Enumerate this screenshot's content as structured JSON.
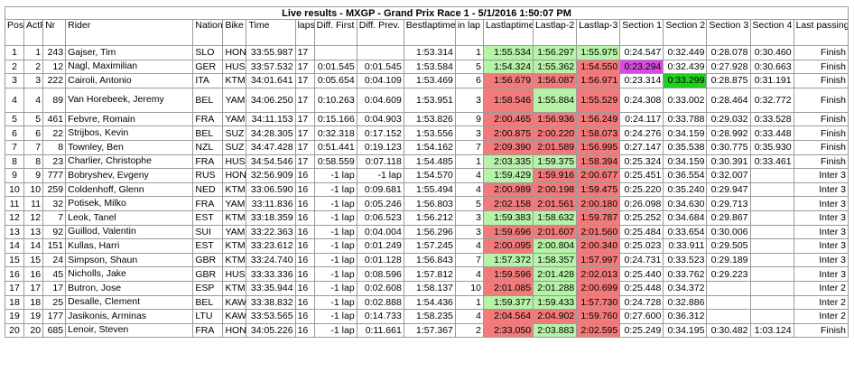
{
  "title": "Live results - MXGP - Grand Prix Race 1 - 5/1/2016 1:50:07 PM",
  "headers": [
    "Pos",
    "ActP",
    "Nr",
    "Rider",
    "Nation",
    "Bike",
    "Time",
    "laps",
    "Diff. First",
    "Diff. Prev.",
    "Bestlaptime",
    "in lap",
    "Lastlaptime",
    "Lastlap-2",
    "Lastlap-3",
    "Section 1",
    "Section 2",
    "Section 3",
    "Section 4",
    "Last passing"
  ],
  "rows": [
    {
      "pos": "1",
      "actp": "1",
      "nr": "243",
      "rider": "Gajser, Tim",
      "nation": "SLO",
      "bike": "HON",
      "time": "33:55.987",
      "laps": "17",
      "dfirst": "",
      "dprev": "",
      "best": "1:53.314",
      "inlap": "1",
      "last": "1:55.534",
      "l2": "1:56.297",
      "l3": "1:55.975",
      "s1": "0:24.547",
      "s2": "0:32.449",
      "s3": "0:28.078",
      "s4": "0:30.460",
      "passing": "Finish"
    },
    {
      "pos": "2",
      "actp": "2",
      "nr": "12",
      "rider": "Nagl, Maximilian",
      "nation": "GER",
      "bike": "HUS",
      "time": "33:57.532",
      "laps": "17",
      "dfirst": "0:01.545",
      "dprev": "0:01.545",
      "best": "1:53.584",
      "inlap": "5",
      "last": "1:54.324",
      "l2": "1:55.362",
      "l3": "1:54.550",
      "s1": "0:23.294",
      "s2": "0:32.439",
      "s3": "0:27.928",
      "s4": "0:30.663",
      "passing": "Finish"
    },
    {
      "pos": "3",
      "actp": "3",
      "nr": "222",
      "rider": "Cairoli, Antonio",
      "nation": "ITA",
      "bike": "KTM",
      "time": "34:01.641",
      "laps": "17",
      "dfirst": "0:05.654",
      "dprev": "0:04.109",
      "best": "1:53.469",
      "inlap": "6",
      "last": "1:56.679",
      "l2": "1:56.087",
      "l3": "1:56.971",
      "s1": "0:23.314",
      "s2": "0:33.299",
      "s3": "0:28.875",
      "s4": "0:31.191",
      "passing": "Finish"
    },
    {
      "pos": "4",
      "actp": "4",
      "nr": "89",
      "rider": "Van Horebeek, Jeremy",
      "nation": "BEL",
      "bike": "YAM",
      "time": "34:06.250",
      "laps": "17",
      "dfirst": "0:10.263",
      "dprev": "0:04.609",
      "best": "1:53.951",
      "inlap": "3",
      "last": "1:58.546",
      "l2": "1:55.884",
      "l3": "1:55.529",
      "s1": "0:24.308",
      "s2": "0:33.002",
      "s3": "0:28.464",
      "s4": "0:32.772",
      "passing": "Finish"
    },
    {
      "pos": "5",
      "actp": "5",
      "nr": "461",
      "rider": "Febvre, Romain",
      "nation": "FRA",
      "bike": "YAM",
      "time": "34:11.153",
      "laps": "17",
      "dfirst": "0:15.166",
      "dprev": "0:04.903",
      "best": "1:53.826",
      "inlap": "9",
      "last": "2:00.465",
      "l2": "1:56.936",
      "l3": "1:56.249",
      "s1": "0:24.117",
      "s2": "0:33.788",
      "s3": "0:29.032",
      "s4": "0:33.528",
      "passing": "Finish"
    },
    {
      "pos": "6",
      "actp": "6",
      "nr": "22",
      "rider": "Strijbos, Kevin",
      "nation": "BEL",
      "bike": "SUZ",
      "time": "34:28.305",
      "laps": "17",
      "dfirst": "0:32.318",
      "dprev": "0:17.152",
      "best": "1:53.556",
      "inlap": "3",
      "last": "2:00.875",
      "l2": "2:00.220",
      "l3": "1:58.073",
      "s1": "0:24.276",
      "s2": "0:34.159",
      "s3": "0:28.992",
      "s4": "0:33.448",
      "passing": "Finish"
    },
    {
      "pos": "7",
      "actp": "7",
      "nr": "8",
      "rider": "Townley, Ben",
      "nation": "NZL",
      "bike": "SUZ",
      "time": "34:47.428",
      "laps": "17",
      "dfirst": "0:51.441",
      "dprev": "0:19.123",
      "best": "1:54.162",
      "inlap": "7",
      "last": "2:09.390",
      "l2": "2:01.589",
      "l3": "1:56.995",
      "s1": "0:27.147",
      "s2": "0:35.538",
      "s3": "0:30.775",
      "s4": "0:35.930",
      "passing": "Finish"
    },
    {
      "pos": "8",
      "actp": "8",
      "nr": "23",
      "rider": "Charlier, Christophe",
      "nation": "FRA",
      "bike": "HUS",
      "time": "34:54.546",
      "laps": "17",
      "dfirst": "0:58.559",
      "dprev": "0:07.118",
      "best": "1:54.485",
      "inlap": "1",
      "last": "2:03.335",
      "l2": "1:59.375",
      "l3": "1:58.394",
      "s1": "0:25.324",
      "s2": "0:34.159",
      "s3": "0:30.391",
      "s4": "0:33.461",
      "passing": "Finish"
    },
    {
      "pos": "9",
      "actp": "9",
      "nr": "777",
      "rider": "Bobryshev, Evgeny",
      "nation": "RUS",
      "bike": "HON",
      "time": "32:56.909",
      "laps": "16",
      "dfirst": "-1 lap",
      "dprev": "-1 lap",
      "best": "1:54.570",
      "inlap": "4",
      "last": "1:59.429",
      "l2": "1:59.916",
      "l3": "2:00.677",
      "s1": "0:25.451",
      "s2": "0:36.554",
      "s3": "0:32.007",
      "s4": "",
      "passing": "Inter 3"
    },
    {
      "pos": "10",
      "actp": "10",
      "nr": "259",
      "rider": "Coldenhoff, Glenn",
      "nation": "NED",
      "bike": "KTM",
      "time": "33:06.590",
      "laps": "16",
      "dfirst": "-1 lap",
      "dprev": "0:09.681",
      "best": "1:55.494",
      "inlap": "4",
      "last": "2:00.989",
      "l2": "2:00.198",
      "l3": "1:59.475",
      "s1": "0:25.220",
      "s2": "0:35.240",
      "s3": "0:29.947",
      "s4": "",
      "passing": "Inter 3"
    },
    {
      "pos": "11",
      "actp": "11",
      "nr": "32",
      "rider": "Potisek, Milko",
      "nation": "FRA",
      "bike": "YAM",
      "time": "33:11.836",
      "laps": "16",
      "dfirst": "-1 lap",
      "dprev": "0:05.246",
      "best": "1:56.803",
      "inlap": "5",
      "last": "2:02.158",
      "l2": "2:01.561",
      "l3": "2:00.180",
      "s1": "0:26.098",
      "s2": "0:34.630",
      "s3": "0:29.713",
      "s4": "",
      "passing": "Inter 3"
    },
    {
      "pos": "12",
      "actp": "12",
      "nr": "7",
      "rider": "Leok, Tanel",
      "nation": "EST",
      "bike": "KTM",
      "time": "33:18.359",
      "laps": "16",
      "dfirst": "-1 lap",
      "dprev": "0:06.523",
      "best": "1:56.212",
      "inlap": "3",
      "last": "1:59.383",
      "l2": "1:58.632",
      "l3": "1:59.787",
      "s1": "0:25.252",
      "s2": "0:34.684",
      "s3": "0:29.867",
      "s4": "",
      "passing": "Inter 3"
    },
    {
      "pos": "13",
      "actp": "13",
      "nr": "92",
      "rider": "Guillod, Valentin",
      "nation": "SUI",
      "bike": "YAM",
      "time": "33:22.363",
      "laps": "16",
      "dfirst": "-1 lap",
      "dprev": "0:04.004",
      "best": "1:56.296",
      "inlap": "3",
      "last": "1:59.696",
      "l2": "2:01.607",
      "l3": "2:01.560",
      "s1": "0:25.484",
      "s2": "0:33.654",
      "s3": "0:30.006",
      "s4": "",
      "passing": "Inter 3"
    },
    {
      "pos": "14",
      "actp": "14",
      "nr": "151",
      "rider": "Kullas, Harri",
      "nation": "EST",
      "bike": "KTM",
      "time": "33:23.612",
      "laps": "16",
      "dfirst": "-1 lap",
      "dprev": "0:01.249",
      "best": "1:57.245",
      "inlap": "4",
      "last": "2:00.095",
      "l2": "2:00.804",
      "l3": "2:00.340",
      "s1": "0:25.023",
      "s2": "0:33.911",
      "s3": "0:29.505",
      "s4": "",
      "passing": "Inter 3"
    },
    {
      "pos": "15",
      "actp": "15",
      "nr": "24",
      "rider": "Simpson, Shaun",
      "nation": "GBR",
      "bike": "KTM",
      "time": "33:24.740",
      "laps": "16",
      "dfirst": "-1 lap",
      "dprev": "0:01.128",
      "best": "1:56.843",
      "inlap": "7",
      "last": "1:57.372",
      "l2": "1:58.357",
      "l3": "1:57.997",
      "s1": "0:24.731",
      "s2": "0:33.523",
      "s3": "0:29.189",
      "s4": "",
      "passing": "Inter 3"
    },
    {
      "pos": "16",
      "actp": "16",
      "nr": "45",
      "rider": "Nicholls, Jake",
      "nation": "GBR",
      "bike": "HUS",
      "time": "33:33.336",
      "laps": "16",
      "dfirst": "-1 lap",
      "dprev": "0:08.596",
      "best": "1:57.812",
      "inlap": "4",
      "last": "1:59.596",
      "l2": "2:01.428",
      "l3": "2:02.013",
      "s1": "0:25.440",
      "s2": "0:33.762",
      "s3": "0:29.223",
      "s4": "",
      "passing": "Inter 3"
    },
    {
      "pos": "17",
      "actp": "17",
      "nr": "17",
      "rider": "Butron, Jose",
      "nation": "ESP",
      "bike": "KTM",
      "time": "33:35.944",
      "laps": "16",
      "dfirst": "-1 lap",
      "dprev": "0:02.608",
      "best": "1:58.137",
      "inlap": "10",
      "last": "2:01.085",
      "l2": "2:01.288",
      "l3": "2:00.699",
      "s1": "0:25.448",
      "s2": "0:34.372",
      "s3": "",
      "s4": "",
      "passing": "Inter 2"
    },
    {
      "pos": "18",
      "actp": "18",
      "nr": "25",
      "rider": "Desalle, Clement",
      "nation": "BEL",
      "bike": "KAW",
      "time": "33:38.832",
      "laps": "16",
      "dfirst": "-1 lap",
      "dprev": "0:02.888",
      "best": "1:54.436",
      "inlap": "1",
      "last": "1:59.377",
      "l2": "1:59.433",
      "l3": "1:57.730",
      "s1": "0:24.728",
      "s2": "0:32.886",
      "s3": "",
      "s4": "",
      "passing": "Inter 2"
    },
    {
      "pos": "19",
      "actp": "19",
      "nr": "177",
      "rider": "Jasikonis, Arminas",
      "nation": "LTU",
      "bike": "KAW",
      "time": "33:53.565",
      "laps": "16",
      "dfirst": "-1 lap",
      "dprev": "0:14.733",
      "best": "1:58.235",
      "inlap": "4",
      "last": "2:04.564",
      "l2": "2:04.902",
      "l3": "1:59.760",
      "s1": "0:27.600",
      "s2": "0:36.312",
      "s3": "",
      "s4": "",
      "passing": "Inter 2"
    },
    {
      "pos": "20",
      "actp": "20",
      "nr": "685",
      "rider": "Lenoir, Steven",
      "nation": "FRA",
      "bike": "HON",
      "time": "34:05.226",
      "laps": "16",
      "dfirst": "-1 lap",
      "dprev": "0:11.661",
      "best": "1:57.367",
      "inlap": "2",
      "last": "2:33.050",
      "l2": "2:03.883",
      "l3": "2:02.595",
      "s1": "0:25.249",
      "s2": "0:34.195",
      "s3": "0:30.482",
      "s4": "1:03.124",
      "passing": "Finish"
    }
  ],
  "colors": {
    "green": "#b6f2a7",
    "red": "#f27a7a",
    "purple": "#d94be0",
    "dark_green": "#1ed11e"
  },
  "cell_highlights": [
    [
      "green",
      "green",
      "green",
      "",
      ""
    ],
    [
      "green",
      "green",
      "red",
      "purple",
      ""
    ],
    [
      "red",
      "red",
      "red",
      "",
      "dark_green"
    ],
    [
      "red",
      "green",
      "red",
      "",
      ""
    ],
    [
      "red",
      "red",
      "red",
      "",
      ""
    ],
    [
      "red",
      "red",
      "red",
      "",
      ""
    ],
    [
      "red",
      "red",
      "red",
      "",
      ""
    ],
    [
      "green",
      "green",
      "red",
      "",
      ""
    ],
    [
      "green",
      "red",
      "red",
      "",
      ""
    ],
    [
      "red",
      "red",
      "red",
      "",
      ""
    ],
    [
      "red",
      "red",
      "red",
      "",
      ""
    ],
    [
      "green",
      "green",
      "red",
      "",
      ""
    ],
    [
      "red",
      "red",
      "red",
      "",
      ""
    ],
    [
      "red",
      "green",
      "red",
      "",
      ""
    ],
    [
      "green",
      "green",
      "red",
      "",
      ""
    ],
    [
      "red",
      "green",
      "red",
      "",
      ""
    ],
    [
      "red",
      "green",
      "red",
      "",
      ""
    ],
    [
      "green",
      "green",
      "red",
      "",
      ""
    ],
    [
      "red",
      "red",
      "red",
      "",
      ""
    ],
    [
      "red",
      "green",
      "red",
      "",
      ""
    ]
  ]
}
